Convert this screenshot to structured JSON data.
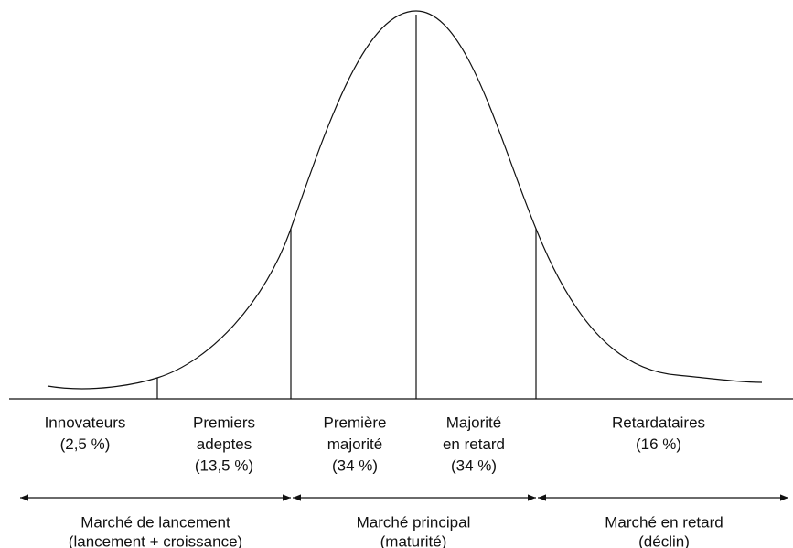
{
  "segments": [
    {
      "lines": [
        "Innovateurs",
        "(2,5 %)"
      ]
    },
    {
      "lines": [
        "Premiers",
        "adeptes",
        "(13,5 %)"
      ]
    },
    {
      "lines": [
        "Première",
        "majorité",
        "(34 %)"
      ]
    },
    {
      "lines": [
        "Majorité",
        "en retard",
        "(34 %)"
      ]
    },
    {
      "lines": [
        "Retardataires",
        "(16 %)"
      ]
    }
  ],
  "markets": [
    {
      "lines": [
        "Marché de lancement",
        "(lancement + croissance)"
      ]
    },
    {
      "lines": [
        "Marché principal",
        "(maturité)"
      ]
    },
    {
      "lines": [
        "Marché en retard",
        "(déclin)"
      ]
    }
  ]
}
